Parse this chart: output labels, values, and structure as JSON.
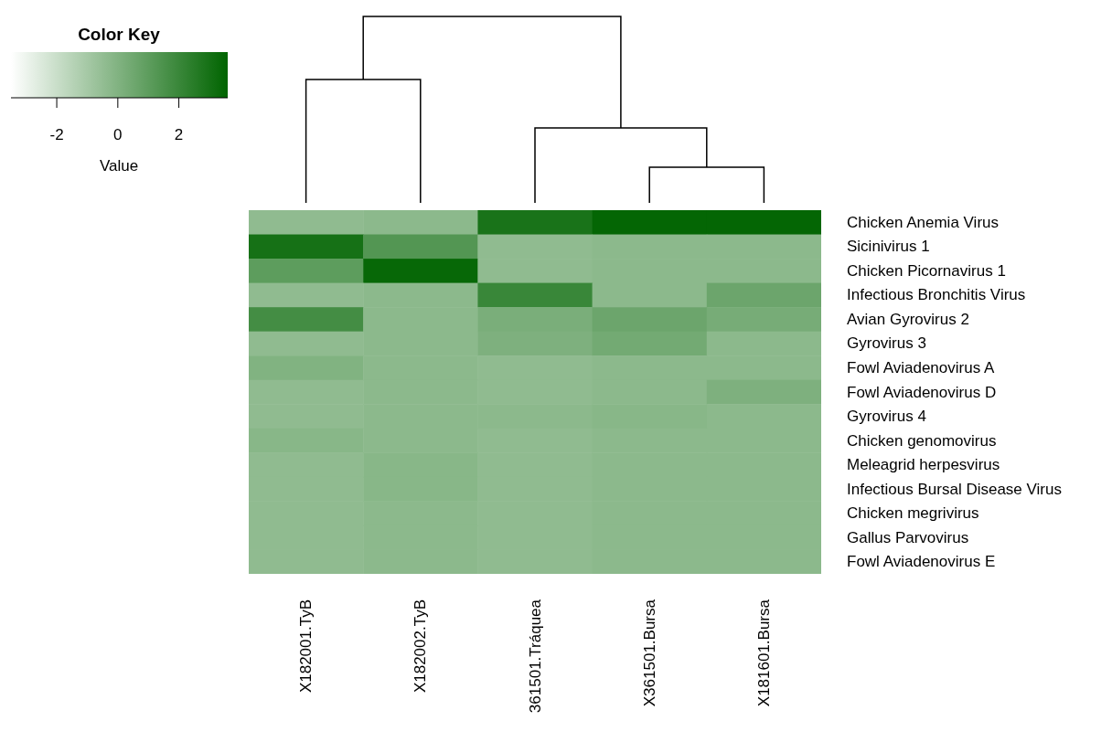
{
  "chart_data": {
    "type": "heatmap",
    "legend_title": "Color Key",
    "clabel": "Value",
    "categories": [
      "X182001.TyB",
      "X182002.TyB",
      "361501.Tráquea",
      "X361501.Bursa",
      "X181601.Bursa"
    ],
    "y_categories": [
      "Chicken Anemia Virus",
      "Sicinivirus 1",
      "Chicken Picornavirus 1",
      "Infectious Bronchitis Virus",
      "Avian Gyrovirus 2",
      "Gyrovirus 3",
      "Fowl Aviadenovirus A",
      "Fowl Aviadenovirus D",
      "Gyrovirus 4",
      "Chicken genomovirus",
      "Meleagrid herpesvirus",
      "Infectious Bursal Disease Virus",
      "Chicken megrivirus",
      "Gallus Parvovirus",
      "Fowl Aviadenovirus E"
    ],
    "cells": [
      [
        -0.4,
        -0.3,
        2.9,
        3.5,
        3.5
      ],
      [
        3.0,
        1.3,
        -0.4,
        -0.3,
        -0.3
      ],
      [
        1.0,
        3.4,
        -0.4,
        -0.3,
        -0.3
      ],
      [
        -0.4,
        -0.3,
        2.0,
        -0.3,
        0.6
      ],
      [
        1.7,
        -0.3,
        0.2,
        0.6,
        0.3
      ],
      [
        -0.4,
        -0.3,
        0.1,
        0.4,
        -0.3
      ],
      [
        0.0,
        -0.3,
        -0.4,
        -0.3,
        -0.3
      ],
      [
        -0.4,
        -0.3,
        -0.4,
        -0.3,
        0.1
      ],
      [
        -0.4,
        -0.3,
        -0.3,
        -0.2,
        -0.3
      ],
      [
        -0.2,
        -0.3,
        -0.4,
        -0.3,
        -0.3
      ],
      [
        -0.4,
        -0.2,
        -0.4,
        -0.3,
        -0.3
      ],
      [
        -0.4,
        -0.2,
        -0.4,
        -0.3,
        -0.3
      ],
      [
        -0.4,
        -0.3,
        -0.4,
        -0.3,
        -0.3
      ],
      [
        -0.4,
        -0.3,
        -0.4,
        -0.3,
        -0.3
      ],
      [
        -0.4,
        -0.3,
        -0.4,
        -0.3,
        -0.3
      ]
    ],
    "clim": [
      -3.5,
      3.6
    ],
    "cticks": [
      -2,
      0,
      2
    ]
  }
}
